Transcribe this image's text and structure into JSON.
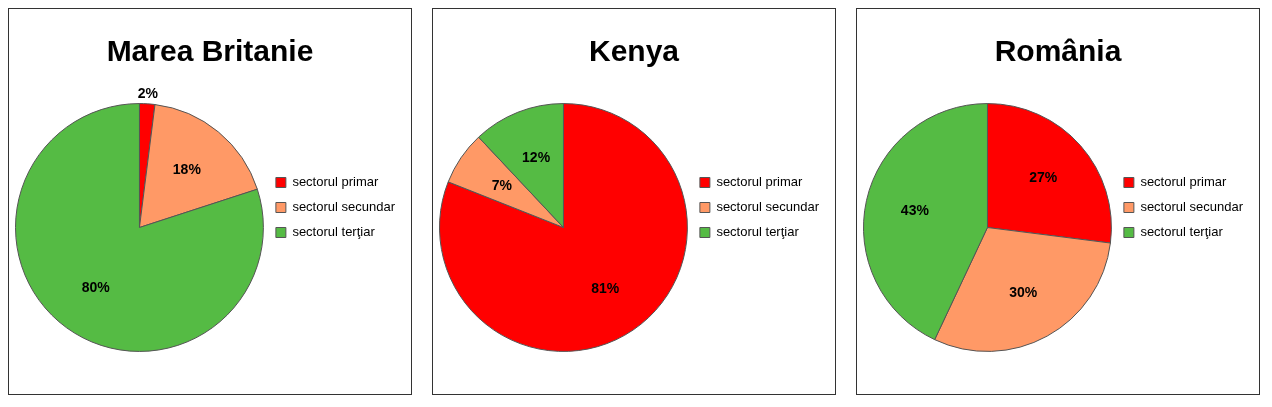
{
  "chart_data": [
    {
      "type": "pie",
      "title": "Marea Britanie",
      "categories": [
        "sectorul primar",
        "sectorul secundar",
        "sectorul terţiar"
      ],
      "values": [
        2,
        18,
        80
      ],
      "value_labels": [
        "2%",
        "18%",
        "80%"
      ],
      "colors": [
        "#ff0000",
        "#ff9966",
        "#55bb44"
      ],
      "legend": "right"
    },
    {
      "type": "pie",
      "title": "Kenya",
      "categories": [
        "sectorul primar",
        "sectorul secundar",
        "sectorul terţiar"
      ],
      "values": [
        81,
        7,
        12
      ],
      "value_labels": [
        "81%",
        "7%",
        "12%"
      ],
      "colors": [
        "#ff0000",
        "#ff9966",
        "#55bb44"
      ],
      "legend": "right"
    },
    {
      "type": "pie",
      "title": "România",
      "categories": [
        "sectorul primar",
        "sectorul secundar",
        "sectorul terţiar"
      ],
      "values": [
        27,
        30,
        43
      ],
      "value_labels": [
        "27%",
        "30%",
        "43%"
      ],
      "colors": [
        "#ff0000",
        "#ff9966",
        "#55bb44"
      ],
      "legend": "right"
    }
  ]
}
